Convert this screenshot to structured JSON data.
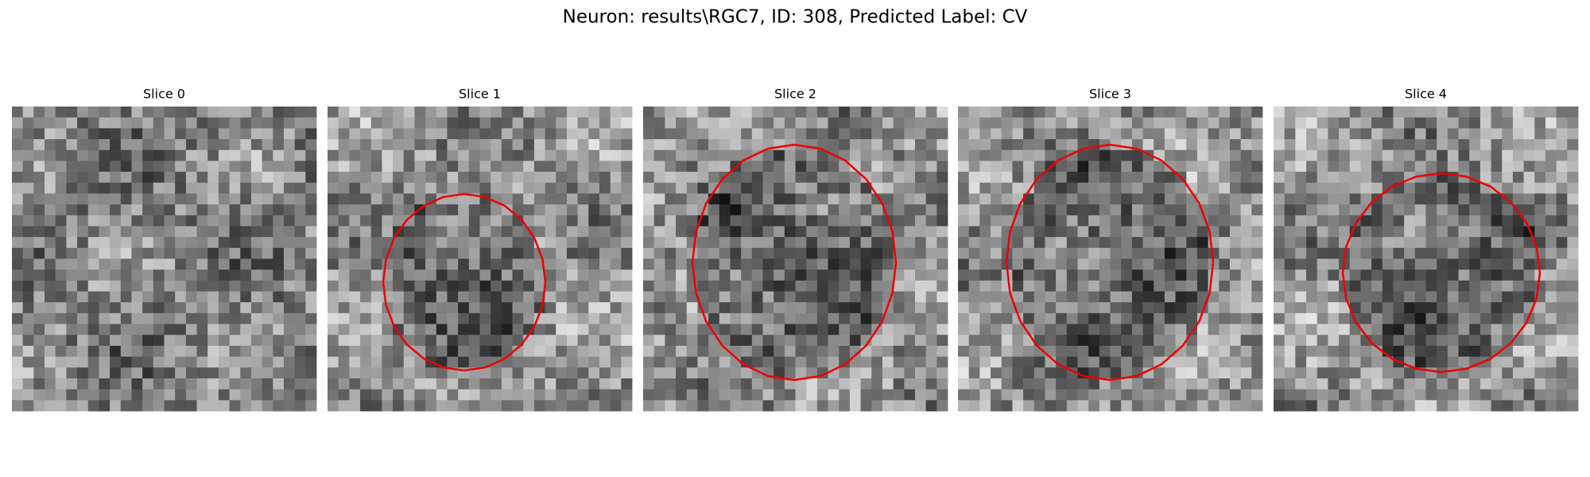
{
  "title": "Neuron: results\\RGC7, ID: 308, Predicted Label: CV",
  "panels": [
    {
      "title": "Slice 0"
    },
    {
      "title": "Slice 1"
    },
    {
      "title": "Slice 2"
    },
    {
      "title": "Slice 3"
    },
    {
      "title": "Slice 4"
    }
  ]
}
